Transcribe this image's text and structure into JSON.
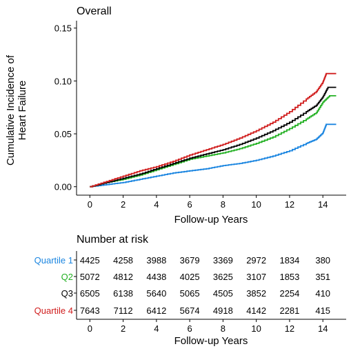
{
  "chart_data": [
    {
      "type": "line",
      "title": "Overall",
      "xlabel": "Follow-up Years",
      "ylabel_lines": [
        "Cumulative Incidence of",
        "Heart Failure"
      ],
      "xlim": [
        -0.8,
        15.4
      ],
      "ylim": [
        -0.008,
        0.157
      ],
      "x_ticks": [
        0,
        2,
        4,
        6,
        8,
        10,
        12,
        14
      ],
      "y_ticks": [
        0.0,
        0.05,
        0.1,
        0.15
      ],
      "y_tick_labels": [
        "0.00",
        "0.05",
        "0.10",
        "0.15"
      ],
      "grid": false,
      "series": [
        {
          "name": "Quartile 1",
          "color": "#1a85e0",
          "x": [
            0,
            1,
            2,
            3,
            4,
            5,
            6,
            7,
            8,
            9,
            10,
            11,
            12,
            13,
            13.6,
            14,
            14.2,
            14.8
          ],
          "y": [
            0.0,
            0.002,
            0.004,
            0.007,
            0.01,
            0.013,
            0.015,
            0.017,
            0.02,
            0.022,
            0.025,
            0.029,
            0.034,
            0.041,
            0.045,
            0.051,
            0.059,
            0.059
          ]
        },
        {
          "name": "Q2",
          "color": "#22b022",
          "x": [
            0,
            1,
            2,
            3,
            4,
            5,
            6,
            7,
            8,
            9,
            10,
            11,
            12,
            13,
            13.6,
            14,
            14.4,
            14.8
          ],
          "y": [
            0.0,
            0.004,
            0.007,
            0.011,
            0.016,
            0.021,
            0.026,
            0.029,
            0.032,
            0.036,
            0.041,
            0.047,
            0.055,
            0.064,
            0.07,
            0.08,
            0.086,
            0.086
          ]
        },
        {
          "name": "Q3",
          "color": "#000000",
          "x": [
            0,
            1,
            2,
            3,
            4,
            5,
            6,
            7,
            8,
            9,
            10,
            11,
            12,
            13,
            13.6,
            14,
            14.3,
            14.8
          ],
          "y": [
            0.0,
            0.004,
            0.008,
            0.012,
            0.017,
            0.022,
            0.027,
            0.031,
            0.035,
            0.04,
            0.046,
            0.053,
            0.061,
            0.071,
            0.077,
            0.085,
            0.094,
            0.094
          ]
        },
        {
          "name": "Quartile 4",
          "color": "#d01c1c",
          "x": [
            0,
            1,
            2,
            3,
            4,
            5,
            6,
            7,
            8,
            9,
            10,
            11,
            12,
            13,
            13.6,
            14,
            14.2,
            14.8
          ],
          "y": [
            0.0,
            0.005,
            0.01,
            0.015,
            0.019,
            0.024,
            0.03,
            0.035,
            0.04,
            0.046,
            0.053,
            0.061,
            0.071,
            0.083,
            0.09,
            0.099,
            0.107,
            0.107
          ]
        }
      ]
    },
    {
      "type": "table",
      "title": "Number at risk",
      "xlabel": "Follow-up Years",
      "x_ticks": [
        0,
        2,
        4,
        6,
        8,
        10,
        12,
        14
      ],
      "rows": [
        {
          "label": "Quartile 1",
          "color": "#1a85e0",
          "values": [
            4425,
            4258,
            3988,
            3679,
            3369,
            2972,
            1834,
            380
          ]
        },
        {
          "label": "Q2",
          "color": "#22b022",
          "values": [
            5072,
            4812,
            4438,
            4025,
            3625,
            3107,
            1853,
            351
          ]
        },
        {
          "label": "Q3",
          "color": "#000000",
          "values": [
            6505,
            6138,
            5640,
            5065,
            4505,
            3852,
            2254,
            410
          ]
        },
        {
          "label": "Quartile 4",
          "color": "#d01c1c",
          "values": [
            7643,
            7112,
            6412,
            5674,
            4918,
            4142,
            2281,
            415
          ]
        }
      ]
    }
  ]
}
